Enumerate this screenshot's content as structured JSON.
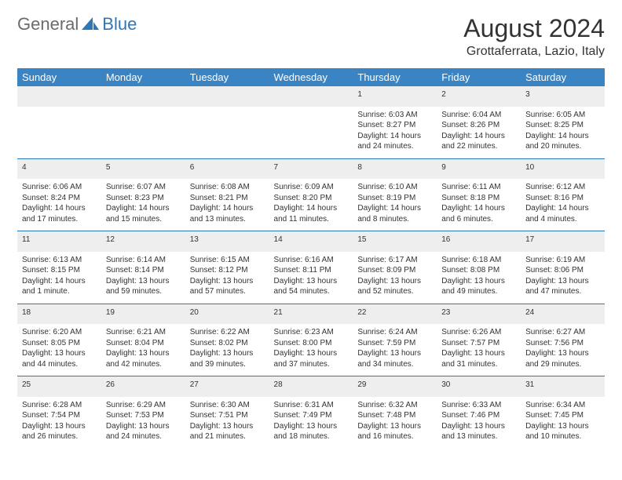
{
  "brand": {
    "general": "General",
    "blue": "Blue"
  },
  "header": {
    "month_title": "August 2024",
    "location": "Grottaferrata, Lazio, Italy"
  },
  "colors": {
    "header_bg": "#3b84c4",
    "header_text": "#ffffff",
    "daynum_bg": "#eeeeee",
    "rule": "#2d77b8",
    "text": "#333333",
    "logo_gray": "#6b6b6b",
    "logo_blue": "#2d77b8"
  },
  "weekdays": [
    "Sunday",
    "Monday",
    "Tuesday",
    "Wednesday",
    "Thursday",
    "Friday",
    "Saturday"
  ],
  "weeks": [
    [
      null,
      null,
      null,
      null,
      {
        "n": "1",
        "sr": "Sunrise: 6:03 AM",
        "ss": "Sunset: 8:27 PM",
        "dl": "Daylight: 14 hours and 24 minutes."
      },
      {
        "n": "2",
        "sr": "Sunrise: 6:04 AM",
        "ss": "Sunset: 8:26 PM",
        "dl": "Daylight: 14 hours and 22 minutes."
      },
      {
        "n": "3",
        "sr": "Sunrise: 6:05 AM",
        "ss": "Sunset: 8:25 PM",
        "dl": "Daylight: 14 hours and 20 minutes."
      }
    ],
    [
      {
        "n": "4",
        "sr": "Sunrise: 6:06 AM",
        "ss": "Sunset: 8:24 PM",
        "dl": "Daylight: 14 hours and 17 minutes."
      },
      {
        "n": "5",
        "sr": "Sunrise: 6:07 AM",
        "ss": "Sunset: 8:23 PM",
        "dl": "Daylight: 14 hours and 15 minutes."
      },
      {
        "n": "6",
        "sr": "Sunrise: 6:08 AM",
        "ss": "Sunset: 8:21 PM",
        "dl": "Daylight: 14 hours and 13 minutes."
      },
      {
        "n": "7",
        "sr": "Sunrise: 6:09 AM",
        "ss": "Sunset: 8:20 PM",
        "dl": "Daylight: 14 hours and 11 minutes."
      },
      {
        "n": "8",
        "sr": "Sunrise: 6:10 AM",
        "ss": "Sunset: 8:19 PM",
        "dl": "Daylight: 14 hours and 8 minutes."
      },
      {
        "n": "9",
        "sr": "Sunrise: 6:11 AM",
        "ss": "Sunset: 8:18 PM",
        "dl": "Daylight: 14 hours and 6 minutes."
      },
      {
        "n": "10",
        "sr": "Sunrise: 6:12 AM",
        "ss": "Sunset: 8:16 PM",
        "dl": "Daylight: 14 hours and 4 minutes."
      }
    ],
    [
      {
        "n": "11",
        "sr": "Sunrise: 6:13 AM",
        "ss": "Sunset: 8:15 PM",
        "dl": "Daylight: 14 hours and 1 minute."
      },
      {
        "n": "12",
        "sr": "Sunrise: 6:14 AM",
        "ss": "Sunset: 8:14 PM",
        "dl": "Daylight: 13 hours and 59 minutes."
      },
      {
        "n": "13",
        "sr": "Sunrise: 6:15 AM",
        "ss": "Sunset: 8:12 PM",
        "dl": "Daylight: 13 hours and 57 minutes."
      },
      {
        "n": "14",
        "sr": "Sunrise: 6:16 AM",
        "ss": "Sunset: 8:11 PM",
        "dl": "Daylight: 13 hours and 54 minutes."
      },
      {
        "n": "15",
        "sr": "Sunrise: 6:17 AM",
        "ss": "Sunset: 8:09 PM",
        "dl": "Daylight: 13 hours and 52 minutes."
      },
      {
        "n": "16",
        "sr": "Sunrise: 6:18 AM",
        "ss": "Sunset: 8:08 PM",
        "dl": "Daylight: 13 hours and 49 minutes."
      },
      {
        "n": "17",
        "sr": "Sunrise: 6:19 AM",
        "ss": "Sunset: 8:06 PM",
        "dl": "Daylight: 13 hours and 47 minutes."
      }
    ],
    [
      {
        "n": "18",
        "sr": "Sunrise: 6:20 AM",
        "ss": "Sunset: 8:05 PM",
        "dl": "Daylight: 13 hours and 44 minutes."
      },
      {
        "n": "19",
        "sr": "Sunrise: 6:21 AM",
        "ss": "Sunset: 8:04 PM",
        "dl": "Daylight: 13 hours and 42 minutes."
      },
      {
        "n": "20",
        "sr": "Sunrise: 6:22 AM",
        "ss": "Sunset: 8:02 PM",
        "dl": "Daylight: 13 hours and 39 minutes."
      },
      {
        "n": "21",
        "sr": "Sunrise: 6:23 AM",
        "ss": "Sunset: 8:00 PM",
        "dl": "Daylight: 13 hours and 37 minutes."
      },
      {
        "n": "22",
        "sr": "Sunrise: 6:24 AM",
        "ss": "Sunset: 7:59 PM",
        "dl": "Daylight: 13 hours and 34 minutes."
      },
      {
        "n": "23",
        "sr": "Sunrise: 6:26 AM",
        "ss": "Sunset: 7:57 PM",
        "dl": "Daylight: 13 hours and 31 minutes."
      },
      {
        "n": "24",
        "sr": "Sunrise: 6:27 AM",
        "ss": "Sunset: 7:56 PM",
        "dl": "Daylight: 13 hours and 29 minutes."
      }
    ],
    [
      {
        "n": "25",
        "sr": "Sunrise: 6:28 AM",
        "ss": "Sunset: 7:54 PM",
        "dl": "Daylight: 13 hours and 26 minutes."
      },
      {
        "n": "26",
        "sr": "Sunrise: 6:29 AM",
        "ss": "Sunset: 7:53 PM",
        "dl": "Daylight: 13 hours and 24 minutes."
      },
      {
        "n": "27",
        "sr": "Sunrise: 6:30 AM",
        "ss": "Sunset: 7:51 PM",
        "dl": "Daylight: 13 hours and 21 minutes."
      },
      {
        "n": "28",
        "sr": "Sunrise: 6:31 AM",
        "ss": "Sunset: 7:49 PM",
        "dl": "Daylight: 13 hours and 18 minutes."
      },
      {
        "n": "29",
        "sr": "Sunrise: 6:32 AM",
        "ss": "Sunset: 7:48 PM",
        "dl": "Daylight: 13 hours and 16 minutes."
      },
      {
        "n": "30",
        "sr": "Sunrise: 6:33 AM",
        "ss": "Sunset: 7:46 PM",
        "dl": "Daylight: 13 hours and 13 minutes."
      },
      {
        "n": "31",
        "sr": "Sunrise: 6:34 AM",
        "ss": "Sunset: 7:45 PM",
        "dl": "Daylight: 13 hours and 10 minutes."
      }
    ]
  ]
}
